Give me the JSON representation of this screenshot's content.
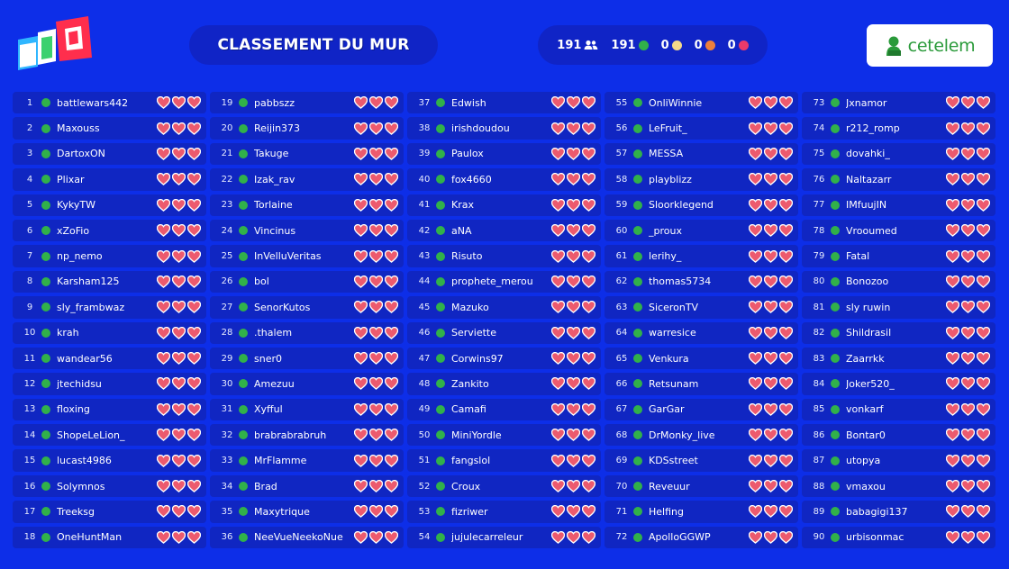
{
  "header": {
    "title": "CLASSEMENT DU MUR",
    "stats": {
      "players_count": "191",
      "players_icon": "users-icon",
      "green_count": "191",
      "yellow_count": "0",
      "orange_count": "0",
      "red_count": "0"
    },
    "sponsor": {
      "text": "cetelem"
    }
  },
  "colors": {
    "background": "#0d2ee8",
    "row": "#1026c2",
    "green": "#31b14a",
    "yellow": "#f4d98a",
    "orange": "#ec7f3c",
    "red": "#ea3a6a",
    "heart": "#ec5a6e"
  },
  "leaderboard": [
    {
      "rank": "1",
      "name": "battlewars442",
      "hearts": 3
    },
    {
      "rank": "2",
      "name": "Maxouss",
      "hearts": 3
    },
    {
      "rank": "3",
      "name": "DartoxON",
      "hearts": 3
    },
    {
      "rank": "4",
      "name": "Plixar",
      "hearts": 3
    },
    {
      "rank": "5",
      "name": "KykyTW",
      "hearts": 3
    },
    {
      "rank": "6",
      "name": "xZoFio",
      "hearts": 3
    },
    {
      "rank": "7",
      "name": "np_nemo",
      "hearts": 3
    },
    {
      "rank": "8",
      "name": "Karsham125",
      "hearts": 3
    },
    {
      "rank": "9",
      "name": "sly_frambwaz",
      "hearts": 3
    },
    {
      "rank": "10",
      "name": "krah",
      "hearts": 3
    },
    {
      "rank": "11",
      "name": "wandear56",
      "hearts": 3
    },
    {
      "rank": "12",
      "name": "jtechidsu",
      "hearts": 3
    },
    {
      "rank": "13",
      "name": "floxing",
      "hearts": 3
    },
    {
      "rank": "14",
      "name": "ShopeLeLion_",
      "hearts": 3
    },
    {
      "rank": "15",
      "name": "lucast4986",
      "hearts": 3
    },
    {
      "rank": "16",
      "name": "Solymnos",
      "hearts": 3
    },
    {
      "rank": "17",
      "name": "Treeksg",
      "hearts": 3
    },
    {
      "rank": "18",
      "name": "OneHuntMan",
      "hearts": 3
    },
    {
      "rank": "19",
      "name": "pabbszz",
      "hearts": 3
    },
    {
      "rank": "20",
      "name": "Reijin373",
      "hearts": 3
    },
    {
      "rank": "21",
      "name": "Takuge",
      "hearts": 3
    },
    {
      "rank": "22",
      "name": "Izak_rav",
      "hearts": 3
    },
    {
      "rank": "23",
      "name": "Torlaine",
      "hearts": 3
    },
    {
      "rank": "24",
      "name": "Vincinus",
      "hearts": 3
    },
    {
      "rank": "25",
      "name": "InVelluVeritas",
      "hearts": 3
    },
    {
      "rank": "26",
      "name": "bol",
      "hearts": 3
    },
    {
      "rank": "27",
      "name": "SenorKutos",
      "hearts": 3
    },
    {
      "rank": "28",
      "name": ".thalem",
      "hearts": 3
    },
    {
      "rank": "29",
      "name": "sner0",
      "hearts": 3
    },
    {
      "rank": "30",
      "name": "Amezuu",
      "hearts": 3
    },
    {
      "rank": "31",
      "name": "Xyfful",
      "hearts": 3
    },
    {
      "rank": "32",
      "name": "brabrabrabruh",
      "hearts": 3
    },
    {
      "rank": "33",
      "name": "MrFlamme",
      "hearts": 3
    },
    {
      "rank": "34",
      "name": "Brad",
      "hearts": 3
    },
    {
      "rank": "35",
      "name": "Maxytrique",
      "hearts": 3
    },
    {
      "rank": "36",
      "name": "NeeVueNeekoNue",
      "hearts": 3
    },
    {
      "rank": "37",
      "name": "Edwish",
      "hearts": 3
    },
    {
      "rank": "38",
      "name": "irishdoudou",
      "hearts": 3
    },
    {
      "rank": "39",
      "name": "Paulox",
      "hearts": 3
    },
    {
      "rank": "40",
      "name": "fox4660",
      "hearts": 3
    },
    {
      "rank": "41",
      "name": "Krax",
      "hearts": 3
    },
    {
      "rank": "42",
      "name": "aNA",
      "hearts": 3
    },
    {
      "rank": "43",
      "name": "Risuto",
      "hearts": 3
    },
    {
      "rank": "44",
      "name": "prophete_merou",
      "hearts": 3
    },
    {
      "rank": "45",
      "name": "Mazuko",
      "hearts": 3
    },
    {
      "rank": "46",
      "name": "Serviette",
      "hearts": 3
    },
    {
      "rank": "47",
      "name": "Corwins97",
      "hearts": 3
    },
    {
      "rank": "48",
      "name": "Zankito",
      "hearts": 3
    },
    {
      "rank": "49",
      "name": "Camafi",
      "hearts": 3
    },
    {
      "rank": "50",
      "name": "MiniYordle",
      "hearts": 3
    },
    {
      "rank": "51",
      "name": "fangslol",
      "hearts": 3
    },
    {
      "rank": "52",
      "name": "Croux",
      "hearts": 3
    },
    {
      "rank": "53",
      "name": "fizriwer",
      "hearts": 3
    },
    {
      "rank": "54",
      "name": "jujulecarreleur",
      "hearts": 3
    },
    {
      "rank": "55",
      "name": "OnliWinnie",
      "hearts": 3
    },
    {
      "rank": "56",
      "name": "LeFruit_",
      "hearts": 3
    },
    {
      "rank": "57",
      "name": "MESSA",
      "hearts": 3
    },
    {
      "rank": "58",
      "name": "playblizz",
      "hearts": 3
    },
    {
      "rank": "59",
      "name": "Sloorklegend",
      "hearts": 3
    },
    {
      "rank": "60",
      "name": "_proux",
      "hearts": 3
    },
    {
      "rank": "61",
      "name": "lerihy_",
      "hearts": 3
    },
    {
      "rank": "62",
      "name": "thomas5734",
      "hearts": 3
    },
    {
      "rank": "63",
      "name": "SiceronTV",
      "hearts": 3
    },
    {
      "rank": "64",
      "name": "warresice",
      "hearts": 3
    },
    {
      "rank": "65",
      "name": "Venkura",
      "hearts": 3
    },
    {
      "rank": "66",
      "name": "Retsunam",
      "hearts": 3
    },
    {
      "rank": "67",
      "name": "GarGar",
      "hearts": 3
    },
    {
      "rank": "68",
      "name": "DrMonky_live",
      "hearts": 3
    },
    {
      "rank": "69",
      "name": "KDSstreet",
      "hearts": 3
    },
    {
      "rank": "70",
      "name": "Reveuur",
      "hearts": 3
    },
    {
      "rank": "71",
      "name": "Helfing",
      "hearts": 3
    },
    {
      "rank": "72",
      "name": "ApolloGGWP",
      "hearts": 3
    },
    {
      "rank": "73",
      "name": "Jxnamor",
      "hearts": 3
    },
    {
      "rank": "74",
      "name": "r212_romp",
      "hearts": 3
    },
    {
      "rank": "75",
      "name": "dovahki_",
      "hearts": 3
    },
    {
      "rank": "76",
      "name": "Naltazarr",
      "hearts": 3
    },
    {
      "rank": "77",
      "name": "IMfuujIN",
      "hearts": 3
    },
    {
      "rank": "78",
      "name": "Vrooumed",
      "hearts": 3
    },
    {
      "rank": "79",
      "name": "Fatal",
      "hearts": 3
    },
    {
      "rank": "80",
      "name": "Bonozoo",
      "hearts": 3
    },
    {
      "rank": "81",
      "name": "sly ruwin",
      "hearts": 3
    },
    {
      "rank": "82",
      "name": "Shildrasil",
      "hearts": 3
    },
    {
      "rank": "83",
      "name": "Zaarrkk",
      "hearts": 3
    },
    {
      "rank": "84",
      "name": "Joker520_",
      "hearts": 3
    },
    {
      "rank": "85",
      "name": "vonkarf",
      "hearts": 3
    },
    {
      "rank": "86",
      "name": "Bontar0",
      "hearts": 3
    },
    {
      "rank": "87",
      "name": "utopya",
      "hearts": 3
    },
    {
      "rank": "88",
      "name": "vmaxou",
      "hearts": 3
    },
    {
      "rank": "89",
      "name": "babagigi137",
      "hearts": 3
    },
    {
      "rank": "90",
      "name": "urbisonmac",
      "hearts": 3
    }
  ]
}
